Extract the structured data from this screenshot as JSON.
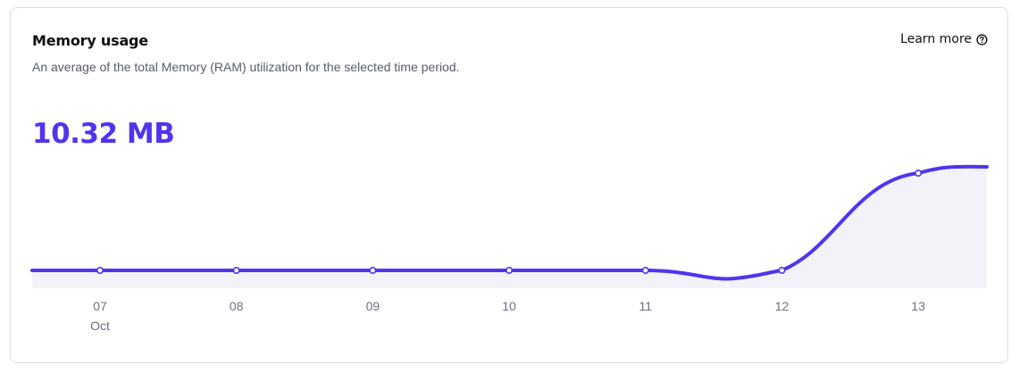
{
  "header": {
    "title": "Memory usage",
    "subtitle": "An average of the total Memory (RAM) utilization for the selected time period.",
    "learn_more": "Learn more"
  },
  "summary": {
    "value": "10.32 MB"
  },
  "colors": {
    "accent": "#5333ed",
    "area": "#f2f2f8"
  },
  "icons": {
    "help": "question-circle-icon"
  },
  "chart_data": {
    "type": "area",
    "x": [
      "07",
      "08",
      "09",
      "10",
      "11",
      "12",
      "13"
    ],
    "month_label": "Oct",
    "values": [
      0,
      0,
      0,
      0,
      0,
      0,
      10.32
    ],
    "ylim": [
      0,
      10.32
    ]
  }
}
